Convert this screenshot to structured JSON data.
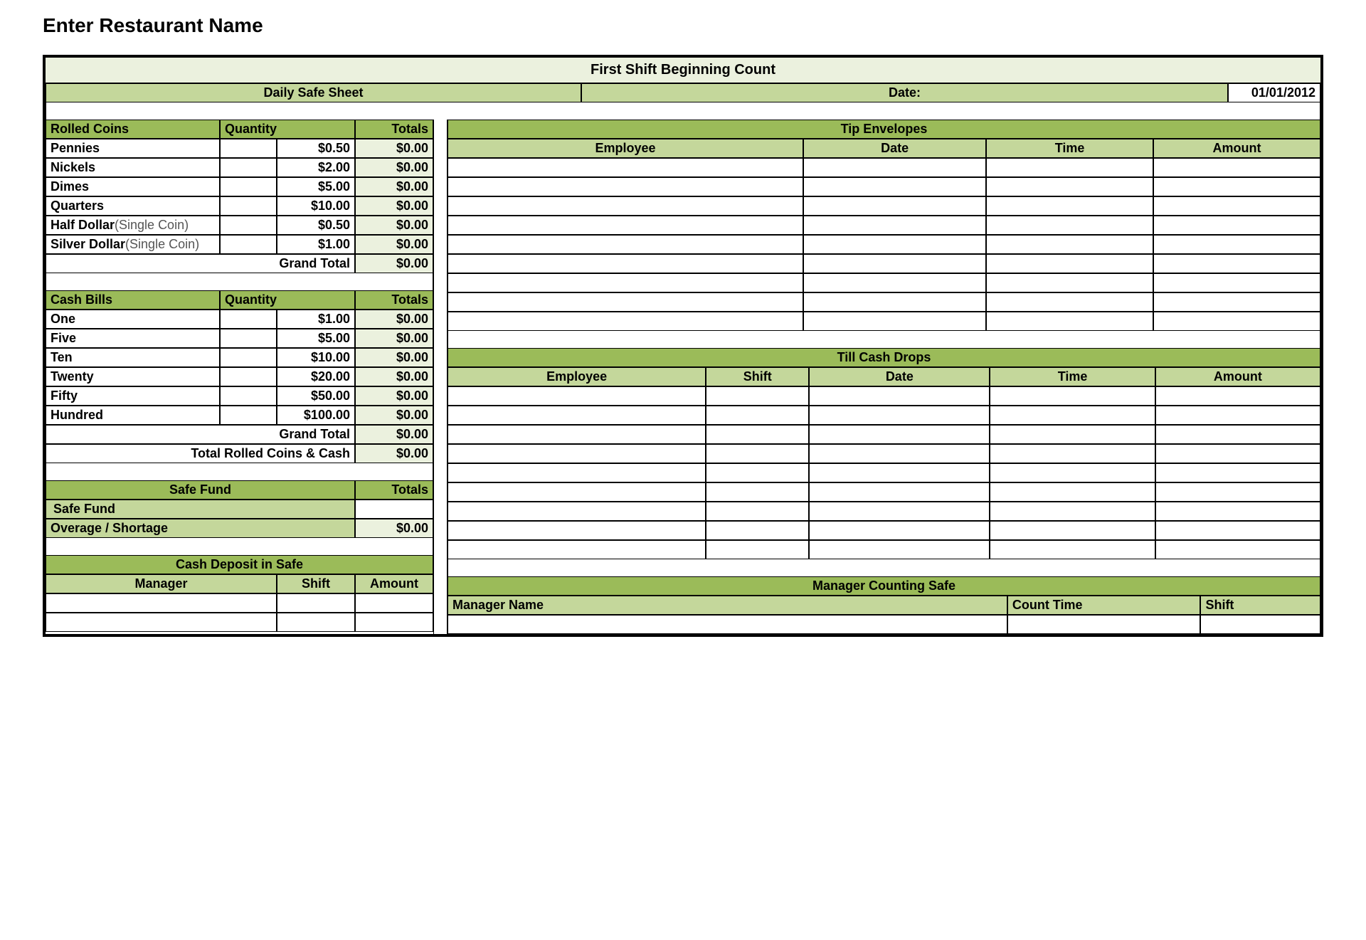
{
  "page_title": "Enter Restaurant Name",
  "colors": {
    "header_light": "#ebf1de",
    "header_med": "#c4d79b",
    "header_dark": "#9bbb59",
    "border": "#000000",
    "bg": "#ffffff"
  },
  "main_title": "First Shift Beginning Count",
  "sheet_label": "Daily Safe Sheet",
  "date_label": "Date:",
  "date_value": "01/01/2012",
  "rolled_coins": {
    "title": "Rolled Coins",
    "qty_label": "Quantity",
    "totals_label": "Totals",
    "rows": [
      {
        "name": "Pennies",
        "note": "",
        "unit": "$0.50",
        "total": "$0.00"
      },
      {
        "name": "Nickels",
        "note": "",
        "unit": "$2.00",
        "total": "$0.00"
      },
      {
        "name": "Dimes",
        "note": "",
        "unit": "$5.00",
        "total": "$0.00"
      },
      {
        "name": "Quarters",
        "note": "",
        "unit": "$10.00",
        "total": "$0.00"
      },
      {
        "name": "Half Dollar",
        "note": " (Single Coin)",
        "unit": "$0.50",
        "total": "$0.00"
      },
      {
        "name": "Silver Dollar",
        "note": " (Single Coin)",
        "unit": "$1.00",
        "total": "$0.00"
      }
    ],
    "grand_total_label": "Grand Total",
    "grand_total_value": "$0.00"
  },
  "cash_bills": {
    "title": "Cash Bills",
    "qty_label": "Quantity",
    "totals_label": "Totals",
    "rows": [
      {
        "name": "One",
        "unit": "$1.00",
        "total": "$0.00"
      },
      {
        "name": "Five",
        "unit": "$5.00",
        "total": "$0.00"
      },
      {
        "name": "Ten",
        "unit": "$10.00",
        "total": "$0.00"
      },
      {
        "name": "Twenty",
        "unit": "$20.00",
        "total": "$0.00"
      },
      {
        "name": "Fifty",
        "unit": "$50.00",
        "total": "$0.00"
      },
      {
        "name": "Hundred",
        "unit": "$100.00",
        "total": "$0.00"
      }
    ],
    "grand_total_label": "Grand Total",
    "grand_total_value": "$0.00",
    "combined_label": "Total Rolled Coins & Cash",
    "combined_value": "$0.00"
  },
  "safe_fund": {
    "title": "Safe Fund",
    "totals_label": "Totals",
    "row_label": "Safe Fund",
    "overage_label": "Overage / Shortage",
    "overage_value": "$0.00"
  },
  "cash_deposit": {
    "title": "Cash Deposit in Safe",
    "cols": {
      "manager": "Manager",
      "shift": "Shift",
      "amount": "Amount"
    },
    "blank_rows": 2
  },
  "tip_envelopes": {
    "title": "Tip Envelopes",
    "cols": {
      "employee": "Employee",
      "date": "Date",
      "time": "Time",
      "amount": "Amount"
    },
    "blank_rows": 9
  },
  "till_drops": {
    "title": "Till Cash Drops",
    "cols": {
      "employee": "Employee",
      "shift": "Shift",
      "date": "Date",
      "time": "Time",
      "amount": "Amount"
    },
    "blank_rows": 9
  },
  "manager_counting": {
    "title": "Manager Counting Safe",
    "cols": {
      "name": "Manager Name",
      "time": "Count Time",
      "shift": "Shift"
    },
    "blank_rows": 1
  }
}
